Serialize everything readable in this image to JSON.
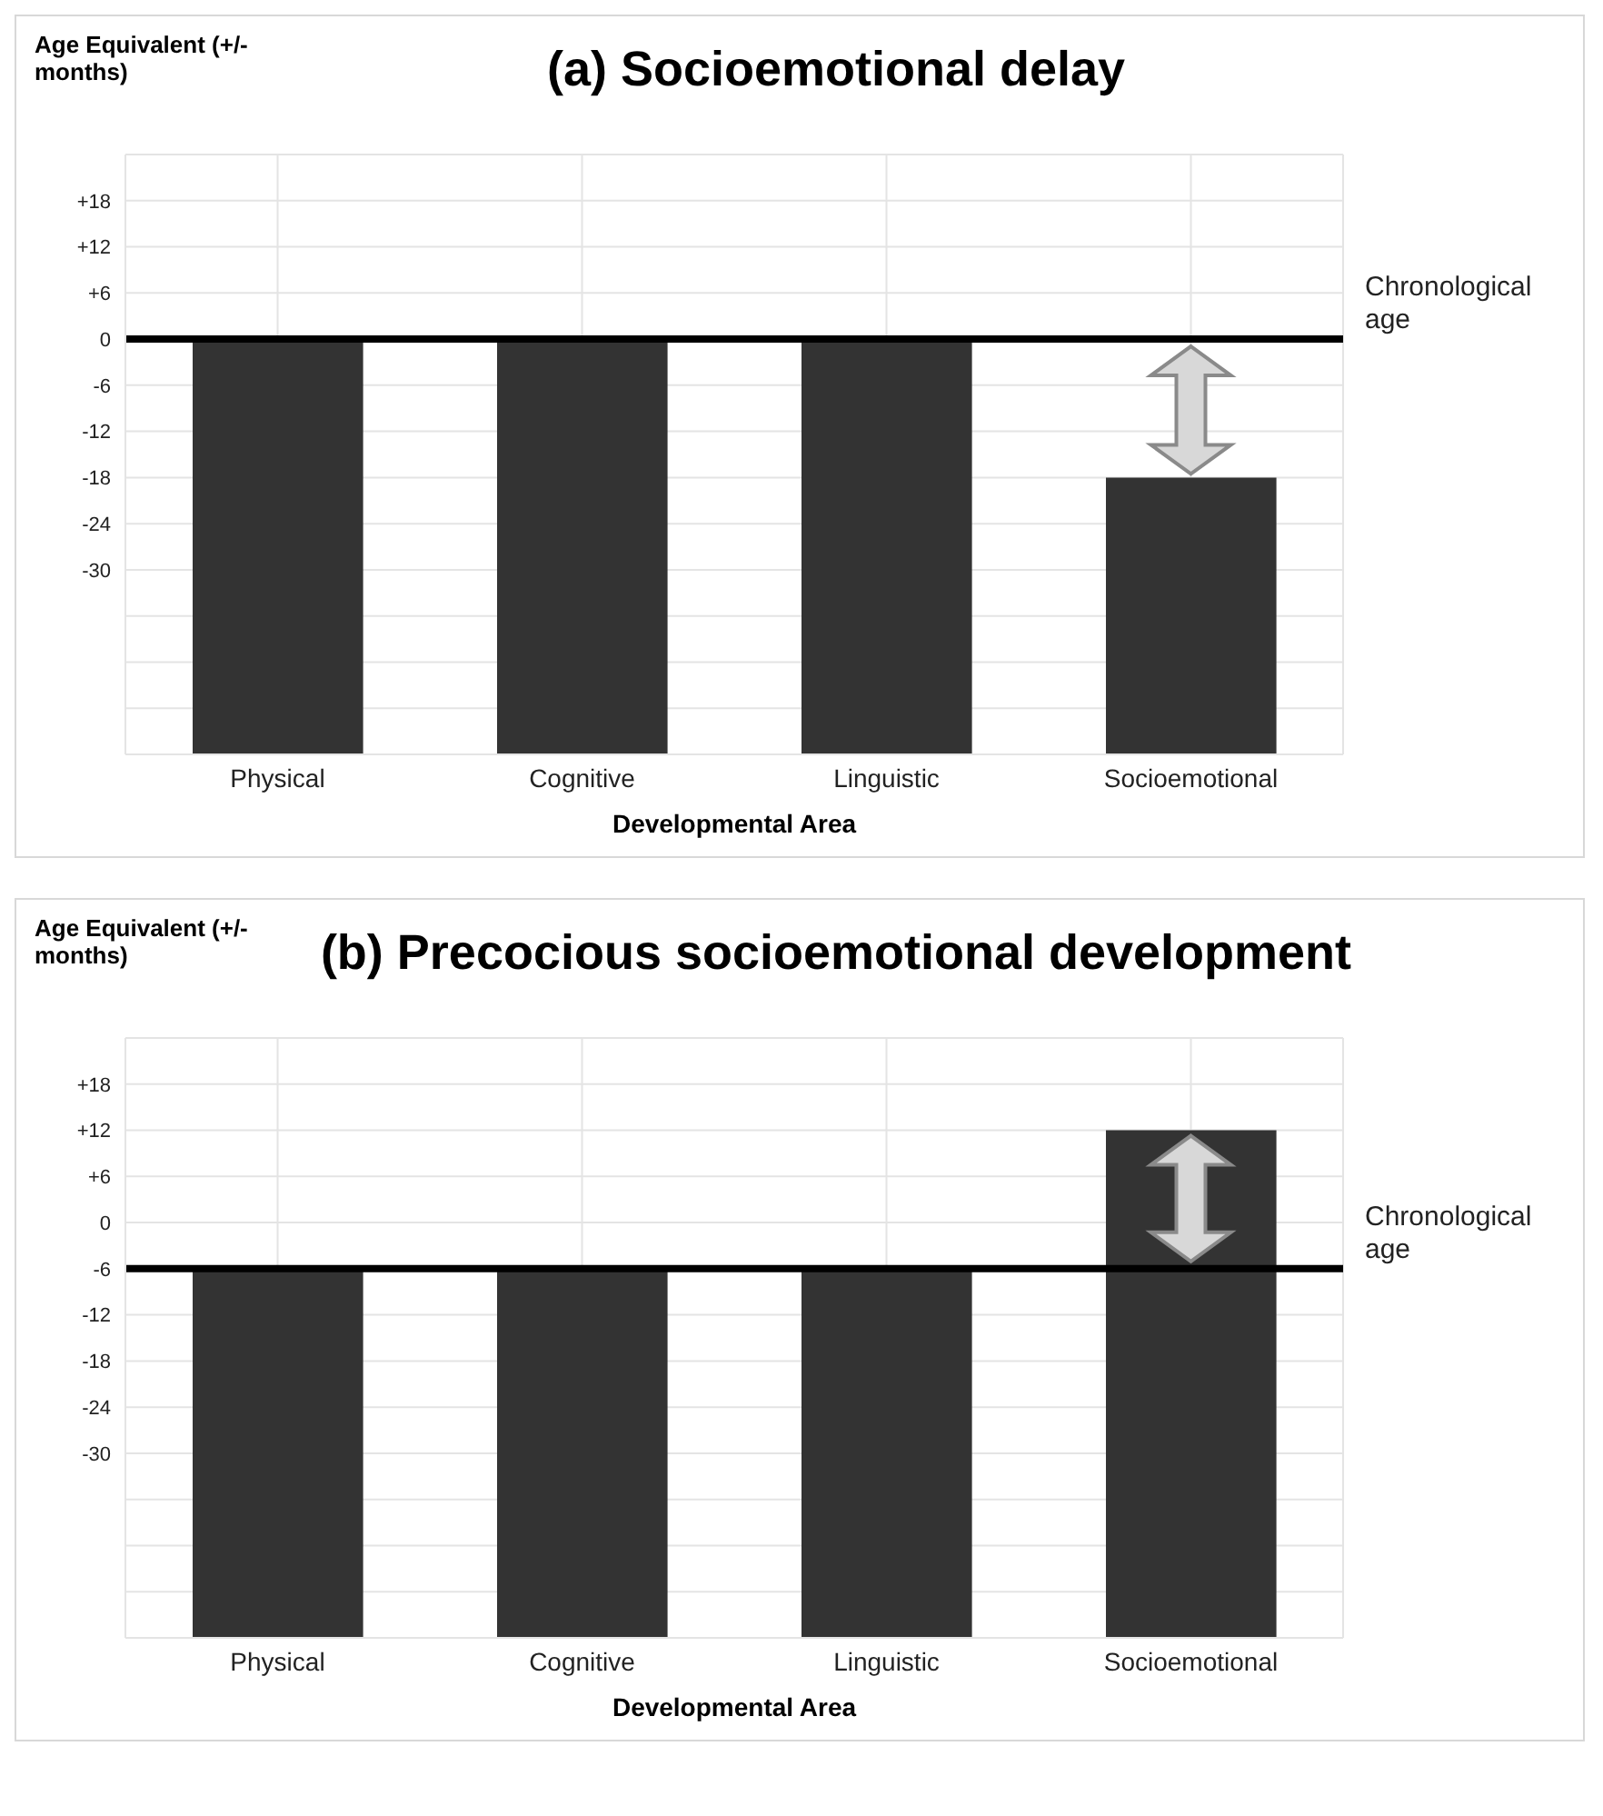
{
  "chart_data": [
    {
      "type": "bar",
      "title": "(a) Socioemotional delay",
      "xlabel": "Developmental Area",
      "ylabel": "Age Equivalent (+/- months)",
      "categories": [
        "Physical",
        "Cognitive",
        "Linguistic",
        "Socioemotional"
      ],
      "series": [
        {
          "color": "#333333",
          "base": [
            -54,
            -54,
            -54,
            -54
          ],
          "values": [
            54,
            54,
            54,
            36
          ]
        }
      ],
      "ylim": [
        -54,
        24
      ],
      "yticks": [
        {
          "value": -54,
          "label": null
        },
        {
          "value": -48,
          "label": null
        },
        {
          "value": -42,
          "label": null
        },
        {
          "value": -36,
          "label": null
        },
        -30,
        -24,
        -18,
        -12,
        -6,
        0,
        {
          "value": 6,
          "label": "+6"
        },
        {
          "value": 12,
          "label": "+12"
        },
        {
          "value": 18,
          "label": "+18"
        },
        {
          "value": 24,
          "label": null
        }
      ],
      "grid": true,
      "ref_lines": [
        {
          "axis": "y",
          "value": 0,
          "label": "Chronological age",
          "color": "#000000"
        }
      ]
    },
    {
      "type": "bar",
      "title": "(b) Precocious socioemotional development",
      "xlabel": "Developmental Area",
      "ylabel": "Age Equivalent (+/- months)",
      "categories": [
        "Physical",
        "Cognitive",
        "Linguistic",
        "Socioemotional"
      ],
      "series": [
        {
          "color": "#333333",
          "base": [
            -54,
            -54,
            -54,
            -54
          ],
          "values": [
            48,
            48,
            48,
            66
          ]
        }
      ],
      "ylim": [
        -54,
        24
      ],
      "yticks": [
        {
          "value": -54,
          "label": null
        },
        {
          "value": -48,
          "label": null
        },
        {
          "value": -42,
          "label": null
        },
        {
          "value": -36,
          "label": null
        },
        -30,
        -24,
        -18,
        -12,
        -6,
        0,
        {
          "value": 6,
          "label": "+6"
        },
        {
          "value": 12,
          "label": "+12"
        },
        {
          "value": 18,
          "label": "+18"
        },
        {
          "value": 24,
          "label": null
        }
      ],
      "grid": true,
      "ref_lines": [
        {
          "axis": "y",
          "value": -6,
          "label": "Chronological age",
          "color": "#000000"
        }
      ]
    }
  ]
}
